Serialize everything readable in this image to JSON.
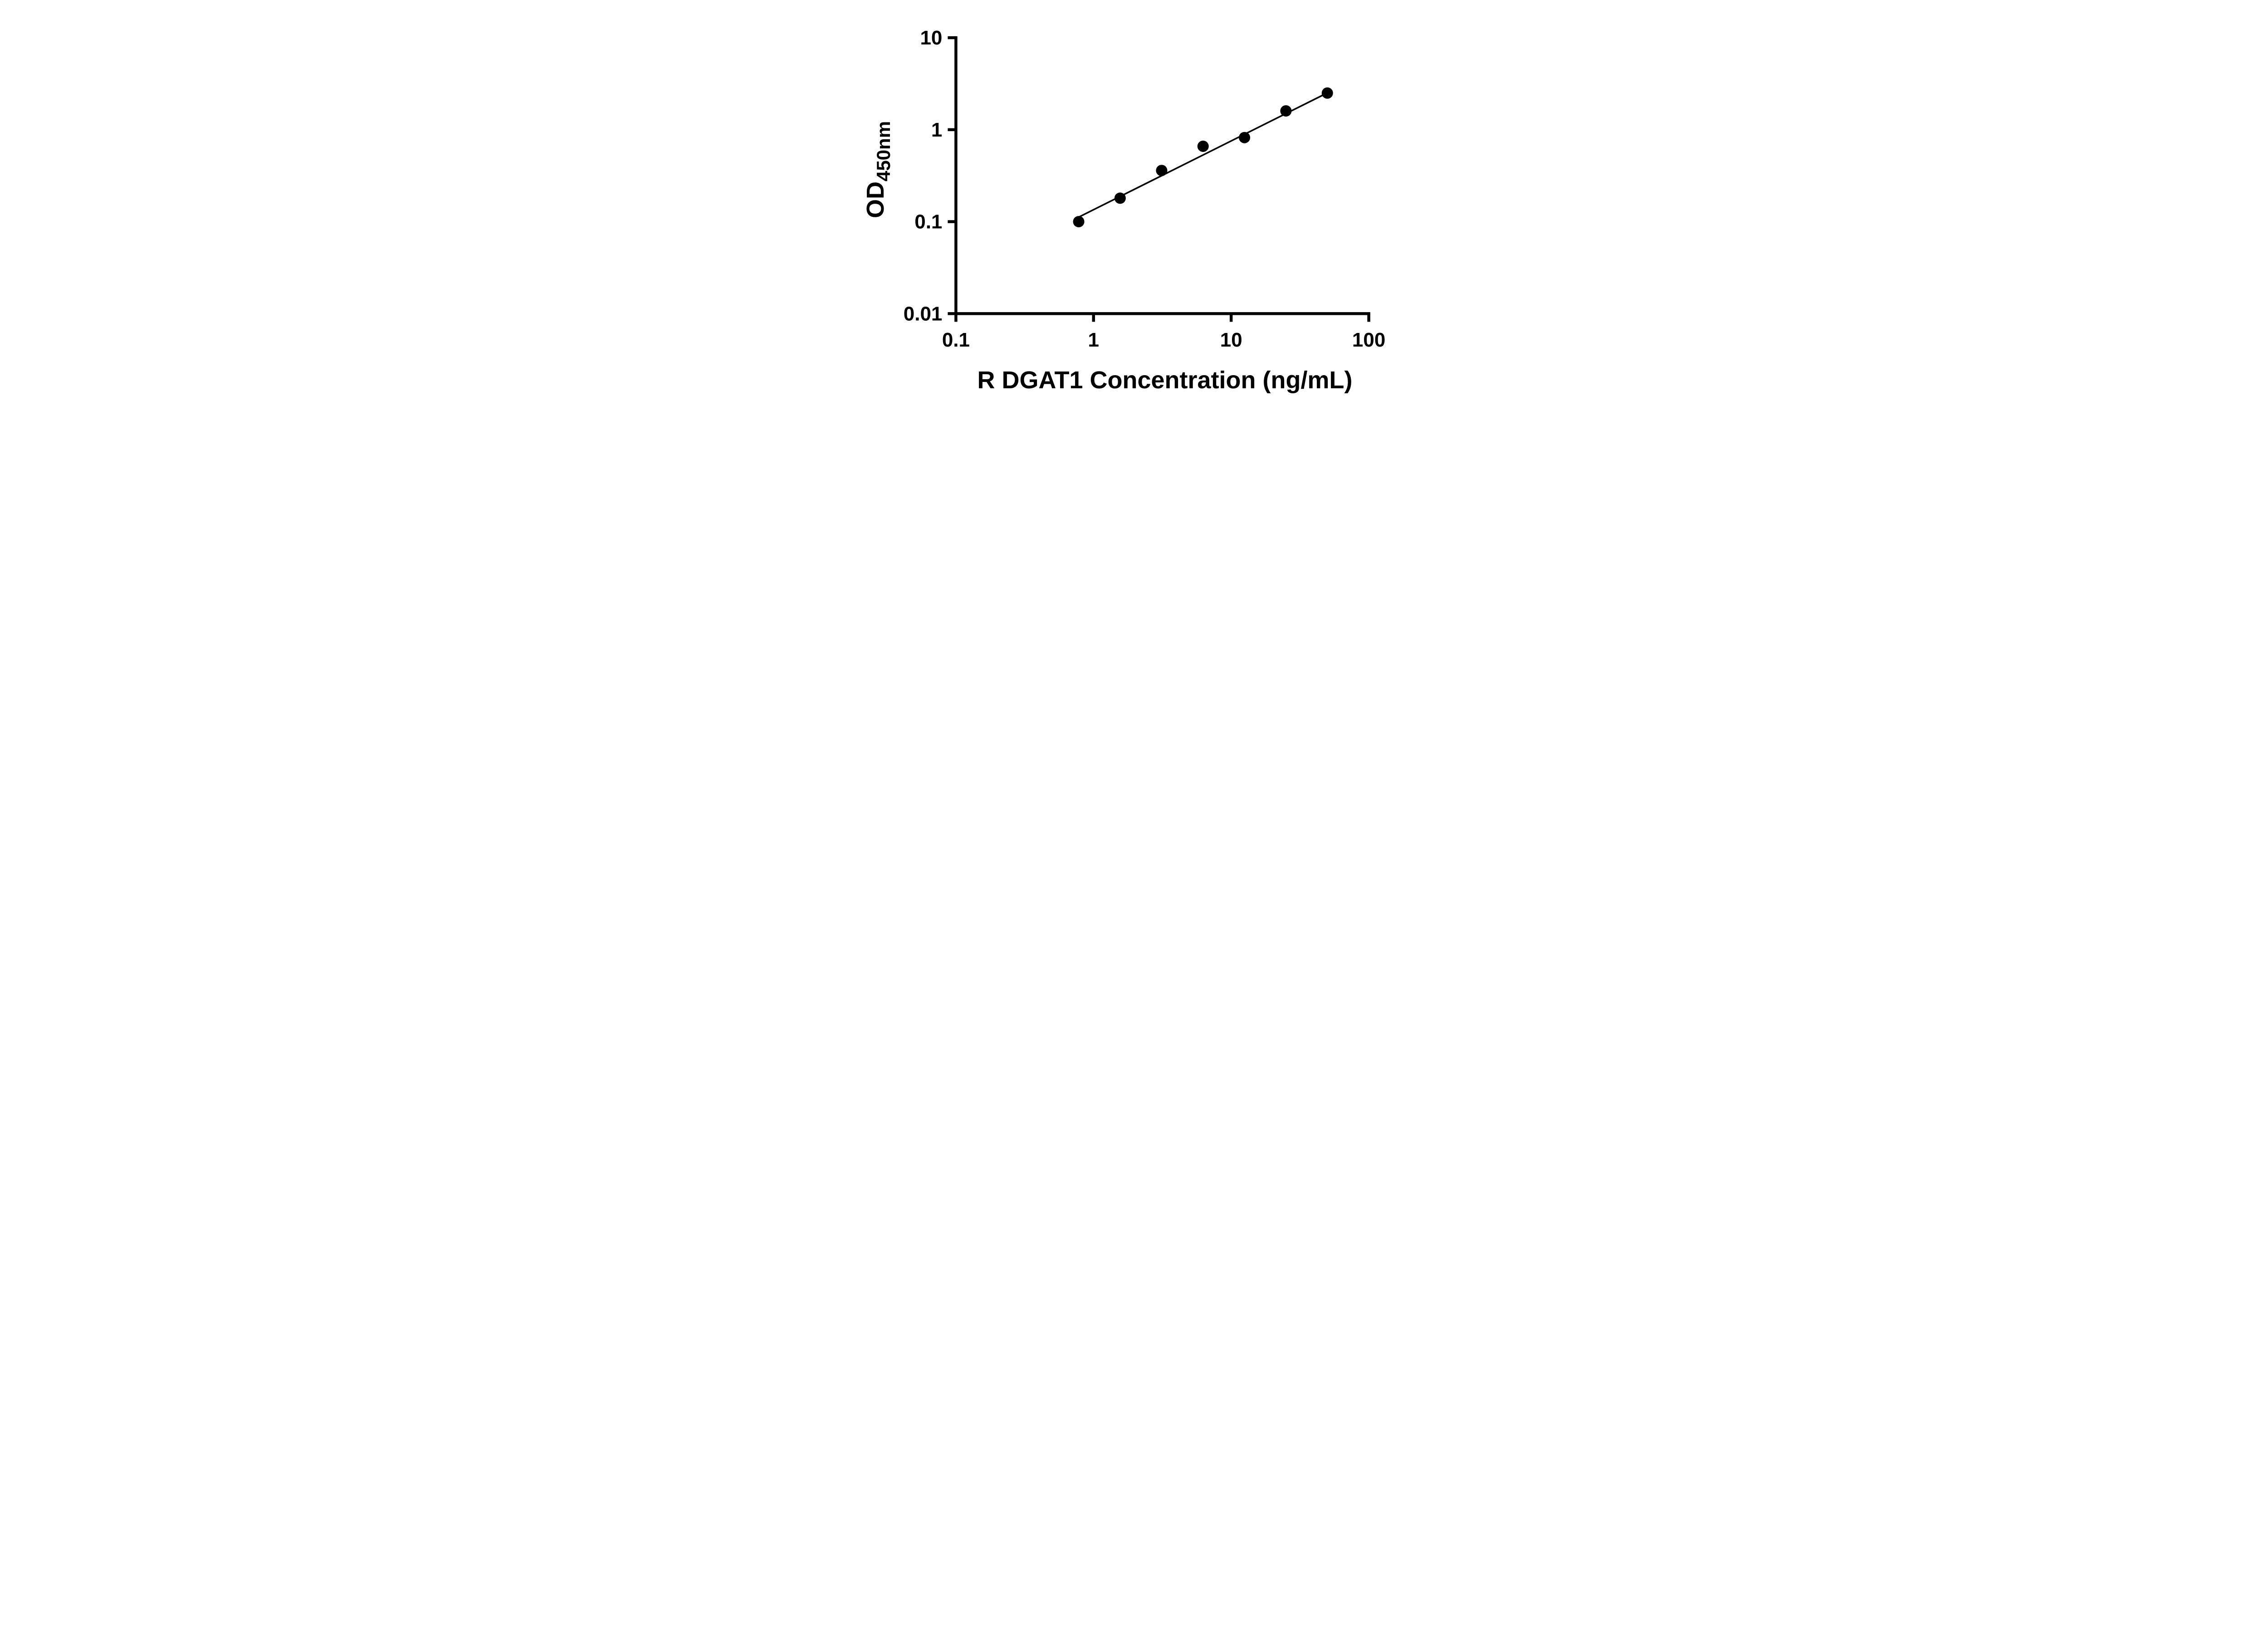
{
  "chart_data": {
    "type": "scatter",
    "title": "",
    "xlabel": "R DGAT1 Concentration (ng/mL)",
    "ylabel_main": "OD",
    "ylabel_sub": "450nm",
    "x_scale": "log",
    "y_scale": "log",
    "xlim": [
      0.1,
      100
    ],
    "ylim": [
      0.01,
      10
    ],
    "x_ticks": [
      0.1,
      1,
      10,
      100
    ],
    "x_tick_labels": [
      "0.1",
      "1",
      "10",
      "100"
    ],
    "y_ticks": [
      0.01,
      0.1,
      1,
      10
    ],
    "y_tick_labels": [
      "0.01",
      "0.1",
      "1",
      "10"
    ],
    "x": [
      0.78,
      1.56,
      3.125,
      6.25,
      12.5,
      25,
      50
    ],
    "y": [
      0.1,
      0.18,
      0.36,
      0.66,
      0.82,
      1.6,
      2.5
    ],
    "trendline": {
      "x1": 0.78,
      "y1": 0.112,
      "x2": 51,
      "y2": 2.55
    },
    "marker": "circle",
    "marker_color": "#000000",
    "line_color": "#000000",
    "axis_color": "#000000",
    "background": "#ffffff",
    "grid": false,
    "legend": "none"
  }
}
